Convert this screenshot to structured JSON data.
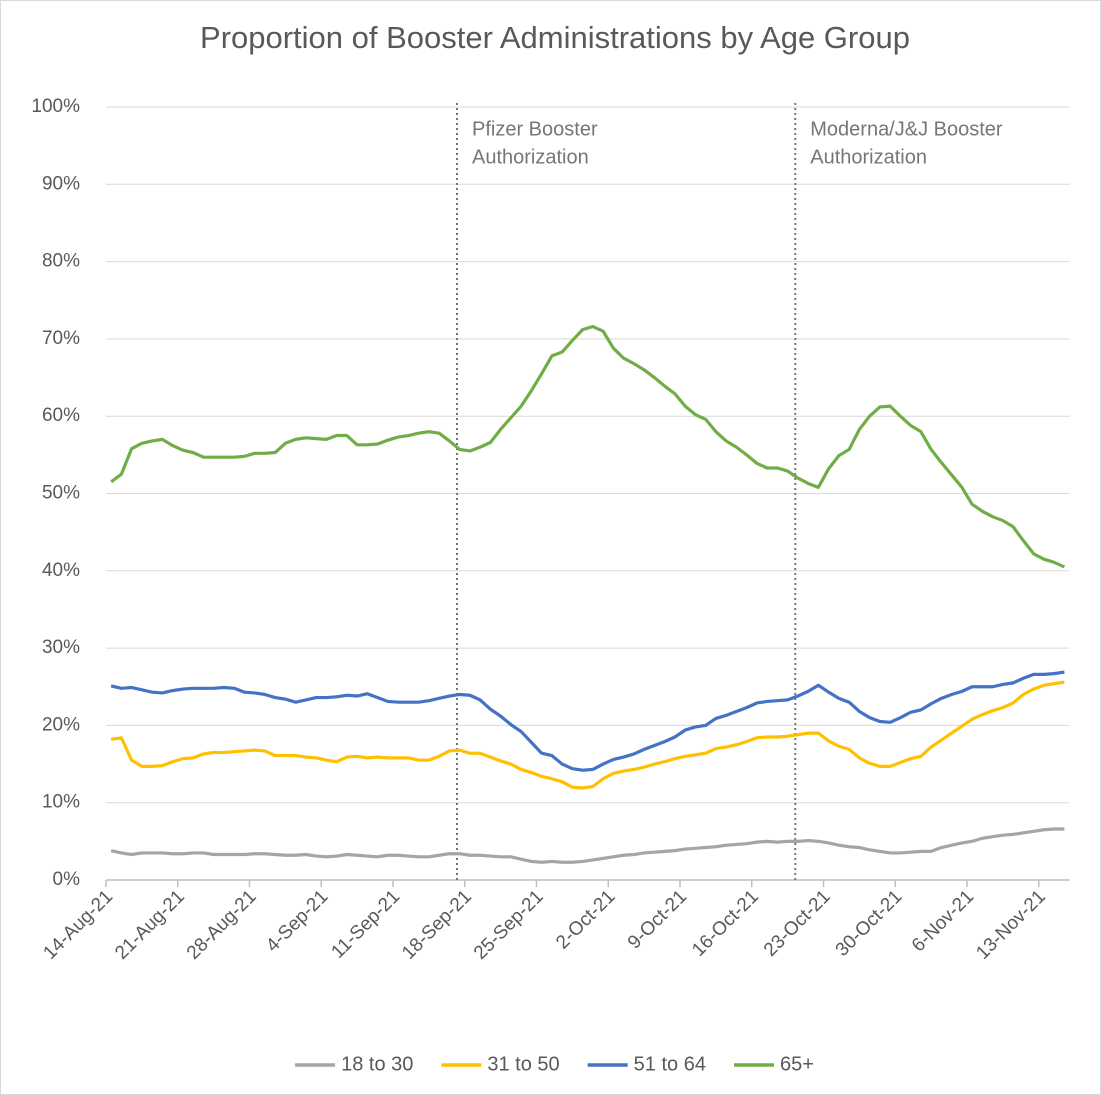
{
  "chart_data": {
    "type": "line",
    "title": "Proportion of Booster Administrations by Age Group",
    "categories": [
      "14-Aug-21",
      null,
      null,
      null,
      null,
      null,
      null,
      "21-Aug-21",
      null,
      null,
      null,
      null,
      null,
      null,
      "28-Aug-21",
      null,
      null,
      null,
      null,
      null,
      null,
      "4-Sep-21",
      null,
      null,
      null,
      null,
      null,
      null,
      "11-Sep-21",
      null,
      null,
      null,
      null,
      null,
      null,
      "18-Sep-21",
      null,
      null,
      null,
      null,
      null,
      null,
      "25-Sep-21",
      null,
      null,
      null,
      null,
      null,
      null,
      "2-Oct-21",
      null,
      null,
      null,
      null,
      null,
      null,
      "9-Oct-21",
      null,
      null,
      null,
      null,
      null,
      null,
      "16-Oct-21",
      null,
      null,
      null,
      null,
      null,
      null,
      "23-Oct-21",
      null,
      null,
      null,
      null,
      null,
      null,
      "30-Oct-21",
      null,
      null,
      null,
      null,
      null,
      null,
      "6-Nov-21",
      null,
      null,
      null,
      null,
      null,
      null,
      "13-Nov-21",
      null,
      null
    ],
    "series": [
      {
        "name": "18 to 30",
        "color": "#a5a5a5",
        "values": [
          3.8,
          3.5,
          3.3,
          3.5,
          3.5,
          3.5,
          3.4,
          3.4,
          3.5,
          3.5,
          3.3,
          3.3,
          3.3,
          3.3,
          3.4,
          3.4,
          3.3,
          3.2,
          3.2,
          3.3,
          3.1,
          3.0,
          3.1,
          3.3,
          3.2,
          3.1,
          3.0,
          3.2,
          3.2,
          3.1,
          3.0,
          3.0,
          3.2,
          3.4,
          3.4,
          3.2,
          3.2,
          3.1,
          3.0,
          3.0,
          2.7,
          2.4,
          2.3,
          2.4,
          2.3,
          2.3,
          2.4,
          2.6,
          2.8,
          3.0,
          3.2,
          3.3,
          3.5,
          3.6,
          3.7,
          3.8,
          4.0,
          4.1,
          4.2,
          4.3,
          4.5,
          4.6,
          4.7,
          4.9,
          5.0,
          4.9,
          5.0,
          5.0,
          5.1,
          5.0,
          4.8,
          4.5,
          4.3,
          4.2,
          3.9,
          3.7,
          3.5,
          3.5,
          3.6,
          3.7,
          3.7,
          4.2,
          4.5,
          4.8,
          5.0,
          5.4,
          5.6,
          5.8,
          5.9,
          6.1,
          6.3,
          6.5,
          6.6,
          6.6
        ]
      },
      {
        "name": "31 to 50",
        "color": "#ffc000",
        "values": [
          18.2,
          18.4,
          15.5,
          14.7,
          14.7,
          14.8,
          15.3,
          15.7,
          15.8,
          16.3,
          16.5,
          16.5,
          16.6,
          16.7,
          16.8,
          16.7,
          16.1,
          16.1,
          16.1,
          15.9,
          15.8,
          15.5,
          15.3,
          15.9,
          16.0,
          15.8,
          15.9,
          15.8,
          15.8,
          15.8,
          15.5,
          15.5,
          16.0,
          16.7,
          16.8,
          16.4,
          16.4,
          15.9,
          15.4,
          15.0,
          14.3,
          13.9,
          13.4,
          13.1,
          12.7,
          12.0,
          11.9,
          12.1,
          13.1,
          13.8,
          14.1,
          14.3,
          14.6,
          15.0,
          15.3,
          15.7,
          16.0,
          16.2,
          16.4,
          17.0,
          17.2,
          17.5,
          17.9,
          18.4,
          18.5,
          18.5,
          18.6,
          18.8,
          19.0,
          19.0,
          18.0,
          17.3,
          16.9,
          15.8,
          15.1,
          14.7,
          14.7,
          15.2,
          15.7,
          16.0,
          17.2,
          18.1,
          19.0,
          19.9,
          20.8,
          21.4,
          21.9,
          22.3,
          22.9,
          24.0,
          24.7,
          25.2,
          25.4,
          25.6
        ]
      },
      {
        "name": "51 to 64",
        "color": "#4472c4",
        "values": [
          25.1,
          24.8,
          24.9,
          24.6,
          24.3,
          24.2,
          24.5,
          24.7,
          24.8,
          24.8,
          24.8,
          24.9,
          24.8,
          24.3,
          24.2,
          24.0,
          23.6,
          23.4,
          23.0,
          23.3,
          23.6,
          23.6,
          23.7,
          23.9,
          23.8,
          24.1,
          23.6,
          23.1,
          23.0,
          23.0,
          23.0,
          23.2,
          23.5,
          23.8,
          24.0,
          23.9,
          23.3,
          22.1,
          21.2,
          20.1,
          19.2,
          17.8,
          16.4,
          16.1,
          15.0,
          14.4,
          14.2,
          14.3,
          15.0,
          15.6,
          15.9,
          16.3,
          16.9,
          17.4,
          17.9,
          18.5,
          19.4,
          19.8,
          20.0,
          20.9,
          21.3,
          21.8,
          22.3,
          22.9,
          23.1,
          23.2,
          23.3,
          23.8,
          24.4,
          25.2,
          24.3,
          23.5,
          23.0,
          21.8,
          21.0,
          20.5,
          20.4,
          21.0,
          21.7,
          22.0,
          22.8,
          23.5,
          24.0,
          24.4,
          25.0,
          25.0,
          25.0,
          25.3,
          25.5,
          26.1,
          26.6,
          26.6,
          26.7,
          26.9
        ]
      },
      {
        "name": "65+",
        "color": "#70ad47",
        "values": [
          51.5,
          52.5,
          55.8,
          56.5,
          56.8,
          57.0,
          56.2,
          55.6,
          55.3,
          54.7,
          54.7,
          54.7,
          54.7,
          54.8,
          55.2,
          55.2,
          55.3,
          56.5,
          57.0,
          57.2,
          57.1,
          57.0,
          57.5,
          57.5,
          56.3,
          56.3,
          56.4,
          56.9,
          57.3,
          57.5,
          57.8,
          58.0,
          57.8,
          56.8,
          55.7,
          55.5,
          56.0,
          56.6,
          58.3,
          59.8,
          61.3,
          63.3,
          65.5,
          67.8,
          68.3,
          69.8,
          71.2,
          71.6,
          71.0,
          68.8,
          67.5,
          66.8,
          66.0,
          65.0,
          63.9,
          62.9,
          61.3,
          60.2,
          59.6,
          58.0,
          56.8,
          56.0,
          55.0,
          53.9,
          53.3,
          53.3,
          52.9,
          52.0,
          51.3,
          50.8,
          53.2,
          54.9,
          55.7,
          58.3,
          60.0,
          61.2,
          61.3,
          60.0,
          58.8,
          58.0,
          55.7,
          54.0,
          52.4,
          50.8,
          48.6,
          47.7,
          47.0,
          46.5,
          45.7,
          43.9,
          42.2,
          41.5,
          41.1,
          40.5
        ]
      }
    ],
    "ylim": [
      0,
      100
    ],
    "yticks": [
      {
        "value": 0,
        "label": "0%"
      },
      {
        "value": 10,
        "label": "10%"
      },
      {
        "value": 20,
        "label": "20%"
      },
      {
        "value": 30,
        "label": "30%"
      },
      {
        "value": 40,
        "label": "40%"
      },
      {
        "value": 50,
        "label": "50%"
      },
      {
        "value": 60,
        "label": "60%"
      },
      {
        "value": 70,
        "label": "70%"
      },
      {
        "value": 80,
        "label": "80%"
      },
      {
        "value": 90,
        "label": "90%"
      },
      {
        "value": 100,
        "label": "100%"
      }
    ],
    "grid": true,
    "legend": "bottom",
    "annotations": [
      {
        "lines": [
          "Pfizer Booster",
          "Authorization"
        ],
        "x": 34
      },
      {
        "lines": [
          "Moderna/J&J Booster",
          "Authorization"
        ],
        "x": 67
      }
    ]
  }
}
